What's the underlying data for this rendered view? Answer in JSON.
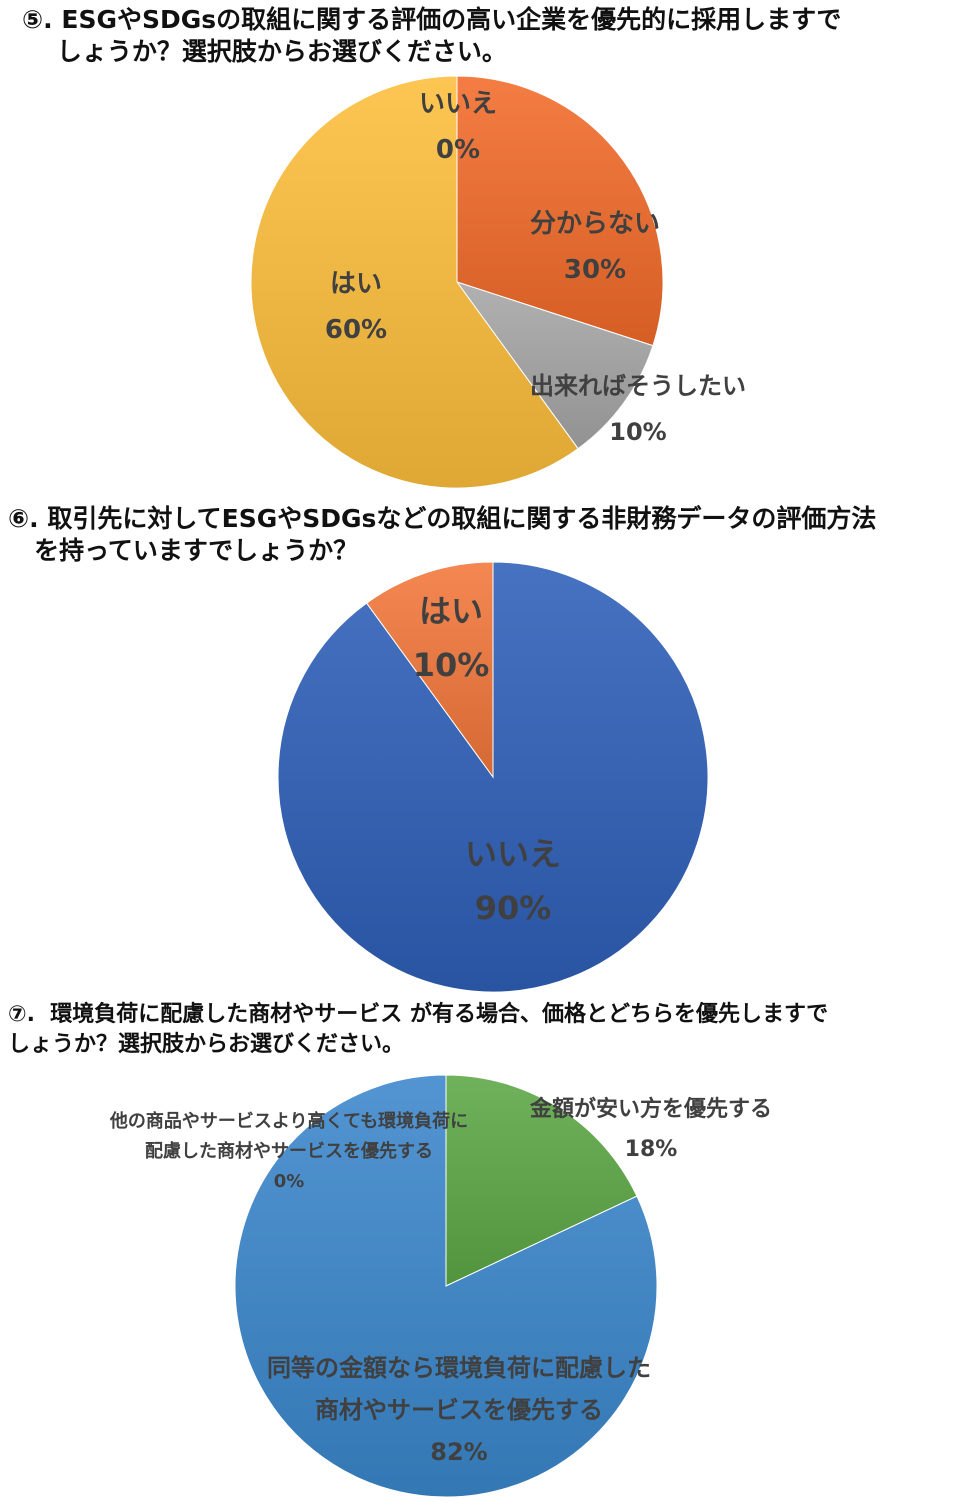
{
  "chart_data": [
    {
      "type": "pie",
      "title": "⑤. ESGやSDGsの取組に関する評価の高い企業を優先的に採用しますで\n    しょうか？選択肢からお選びください。",
      "categories": [
        "いいえ",
        "分からない",
        "出来ればそうしたい",
        "はい"
      ],
      "values": [
        0,
        30,
        10,
        60
      ],
      "labels": [
        "0%",
        "30%",
        "10%",
        "60%"
      ],
      "colors": [
        "#F07840",
        "#F26B2A",
        "#A6A6A6",
        "#FDBE3B"
      ]
    },
    {
      "type": "pie",
      "title": "⑥. 取引先に対してESGやSDGsなどの取組に関する非財務データの評価方法\n   を持っていますでしょうか？",
      "categories": [
        "いいえ",
        "はい"
      ],
      "values": [
        90,
        10
      ],
      "labels": [
        "90%",
        "10%"
      ],
      "colors": [
        "#2E5FB8",
        "#F2773A"
      ]
    },
    {
      "type": "pie",
      "title": "⑦.  環境負荷に配慮した商材やサービス が有る場合、価格とどちらを優先しますで\nしょうか？選択肢からお選びください。",
      "categories": [
        "金額が安い方を優先する",
        "同等の金額なら環境負荷に配慮した商材やサービスを優先する",
        "他の商品やサービスより高くても環境負荷に配慮した商材やサービスを優先する"
      ],
      "category_lines": [
        [
          "金額が安い方を優先する"
        ],
        [
          "同等の金額なら環境負荷に配慮した",
          "商材やサービスを優先する"
        ],
        [
          "他の商品やサービスより高くても環境負荷に",
          "配慮した商材やサービスを優先する"
        ]
      ],
      "values": [
        18,
        82,
        0
      ],
      "labels": [
        "18%",
        "82%",
        "0%"
      ],
      "colors": [
        "#5DA845",
        "#3A87CC",
        "#6AA4D8"
      ]
    }
  ]
}
